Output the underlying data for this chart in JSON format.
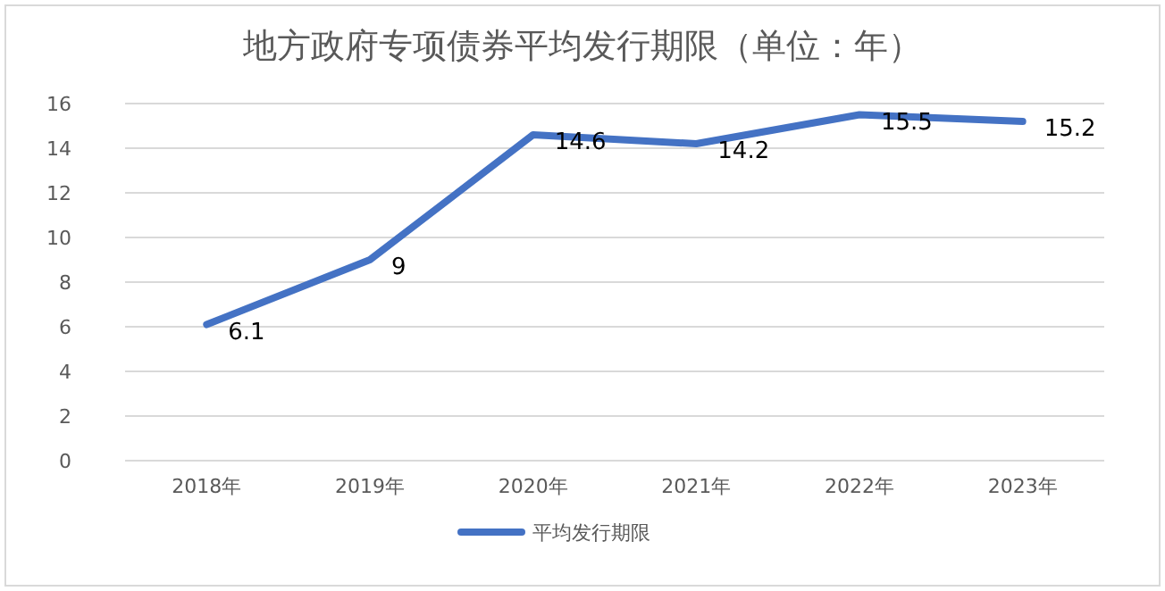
{
  "chart_data": {
    "type": "line",
    "title": "地方政府专项债券平均发行期限（单位：年）",
    "categories": [
      "2018年",
      "2019年",
      "2020年",
      "2021年",
      "2022年",
      "2023年"
    ],
    "series": [
      {
        "name": "平均发行期限",
        "color": "#4472c4",
        "values": [
          6.1,
          9,
          14.6,
          14.2,
          15.5,
          15.2
        ]
      }
    ],
    "ylim": [
      0,
      16
    ],
    "yticks": [
      0,
      2,
      4,
      6,
      8,
      10,
      12,
      14,
      16
    ],
    "grid": "y",
    "legend": "bottom",
    "data_labels": true
  }
}
